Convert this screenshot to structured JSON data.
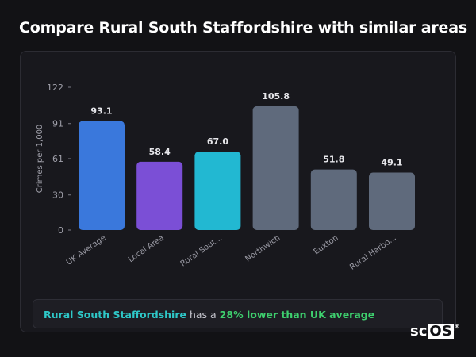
{
  "page": {
    "title": "Compare Rural South Staffordshire with similar areas"
  },
  "chart_data": {
    "type": "bar",
    "ylabel": "Crimes per 1,000",
    "xlabel": "",
    "ylim": [
      0,
      122
    ],
    "yticks": [
      0,
      30,
      61,
      91,
      122
    ],
    "grid": false,
    "categories": [
      "UK Average",
      "Local Area",
      "Rural Sout...",
      "Northwich",
      "Euxton",
      "Rural Harbo..."
    ],
    "values": [
      93.1,
      58.4,
      67.0,
      105.8,
      51.8,
      49.1
    ],
    "value_labels": [
      "93.1",
      "58.4",
      "67.0",
      "105.8",
      "51.8",
      "49.1"
    ],
    "colors": [
      "#3a78dc",
      "#7b4fd6",
      "#22b8d2",
      "#5f6a7c",
      "#5f6a7c",
      "#5f6a7c"
    ]
  },
  "summary": {
    "area": "Rural South Staffordshire",
    "mid": " has a ",
    "diff": "28% lower than UK average"
  },
  "logo": {
    "left": "sc",
    "box": "OS",
    "mark": "®"
  }
}
